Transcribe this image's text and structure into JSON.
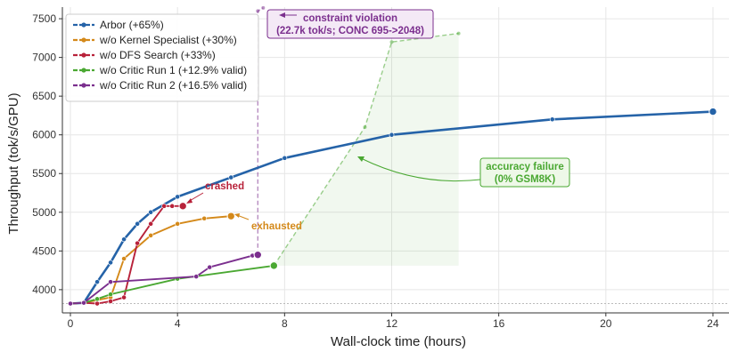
{
  "chart_data": {
    "type": "line",
    "xlabel": "Wall-clock time (hours)",
    "ylabel": "Throughput (tok/s/GPU)",
    "xlim": [
      -0.3,
      24.6
    ],
    "ylim": [
      3700,
      7650
    ],
    "xticks": [
      0,
      4,
      8,
      12,
      16,
      20,
      24
    ],
    "yticks": [
      4000,
      4500,
      5000,
      5500,
      6000,
      6500,
      7000,
      7500
    ],
    "grid": true,
    "legend_position": "top-left",
    "baseline": 3820,
    "series": [
      {
        "name": "Arbor (+65%)",
        "color": "#2563a8",
        "x": [
          0,
          0.5,
          1.0,
          1.5,
          2.0,
          2.5,
          3.0,
          4.0,
          6.0,
          8.0,
          12.0,
          18.0,
          24.0
        ],
        "y": [
          3820,
          3830,
          4100,
          4350,
          4650,
          4850,
          5000,
          5200,
          5450,
          5700,
          6000,
          6200,
          6300
        ]
      },
      {
        "name": "w/o Kernel Specialist (+30%)",
        "color": "#d4891a",
        "x": [
          0,
          0.5,
          1.5,
          2.0,
          3.0,
          4.0,
          5.0,
          6.0
        ],
        "y": [
          3820,
          3830,
          3900,
          4400,
          4700,
          4850,
          4920,
          4950
        ]
      },
      {
        "name": "w/o DFS Search (+33%)",
        "color": "#b8223a",
        "x": [
          0,
          0.5,
          1.0,
          1.5,
          2.0,
          2.5,
          3.0,
          3.5,
          3.8,
          4.2
        ],
        "y": [
          3820,
          3830,
          3820,
          3850,
          3900,
          4600,
          4850,
          5080,
          5080,
          5080
        ]
      },
      {
        "name": "w/o Critic Run 1 (+12.9% valid)",
        "color": "#4aa832",
        "x": [
          0,
          0.5,
          1.0,
          1.5,
          4.0,
          7.6
        ],
        "y": [
          3820,
          3830,
          3880,
          3940,
          4140,
          4310
        ]
      },
      {
        "name": "w/o Critic Run 2 (+16.5% valid)",
        "color": "#7b2f8e",
        "x": [
          0,
          0.5,
          1.5,
          4.7,
          5.2,
          6.8,
          7.0
        ],
        "y": [
          3820,
          3830,
          4100,
          4170,
          4290,
          4440,
          4450
        ]
      }
    ],
    "dashed_segments": [
      {
        "color": "#4aa832",
        "x": [
          7.6,
          11.0,
          12.0,
          14.5
        ],
        "y": [
          4310,
          6100,
          7200,
          7310
        ]
      },
      {
        "color": "#7b2f8e",
        "x": [
          7.0,
          7.0,
          7.2
        ],
        "y": [
          4450,
          7600,
          7640
        ]
      }
    ],
    "shaded_region": {
      "color": "#4aa832",
      "x": [
        7.6,
        11.0,
        12.0,
        14.5
      ],
      "y": [
        4310,
        6100,
        7200,
        7310
      ],
      "floor": 4310
    },
    "annotations": {
      "crashed": "crashed",
      "exhausted": "exhausted",
      "constraint_line1": "constraint violation",
      "constraint_line2": "(22.7k tok/s; CONC 695->2048)",
      "accuracy_line1": "accuracy failure",
      "accuracy_line2": "(0% GSM8K)"
    }
  }
}
